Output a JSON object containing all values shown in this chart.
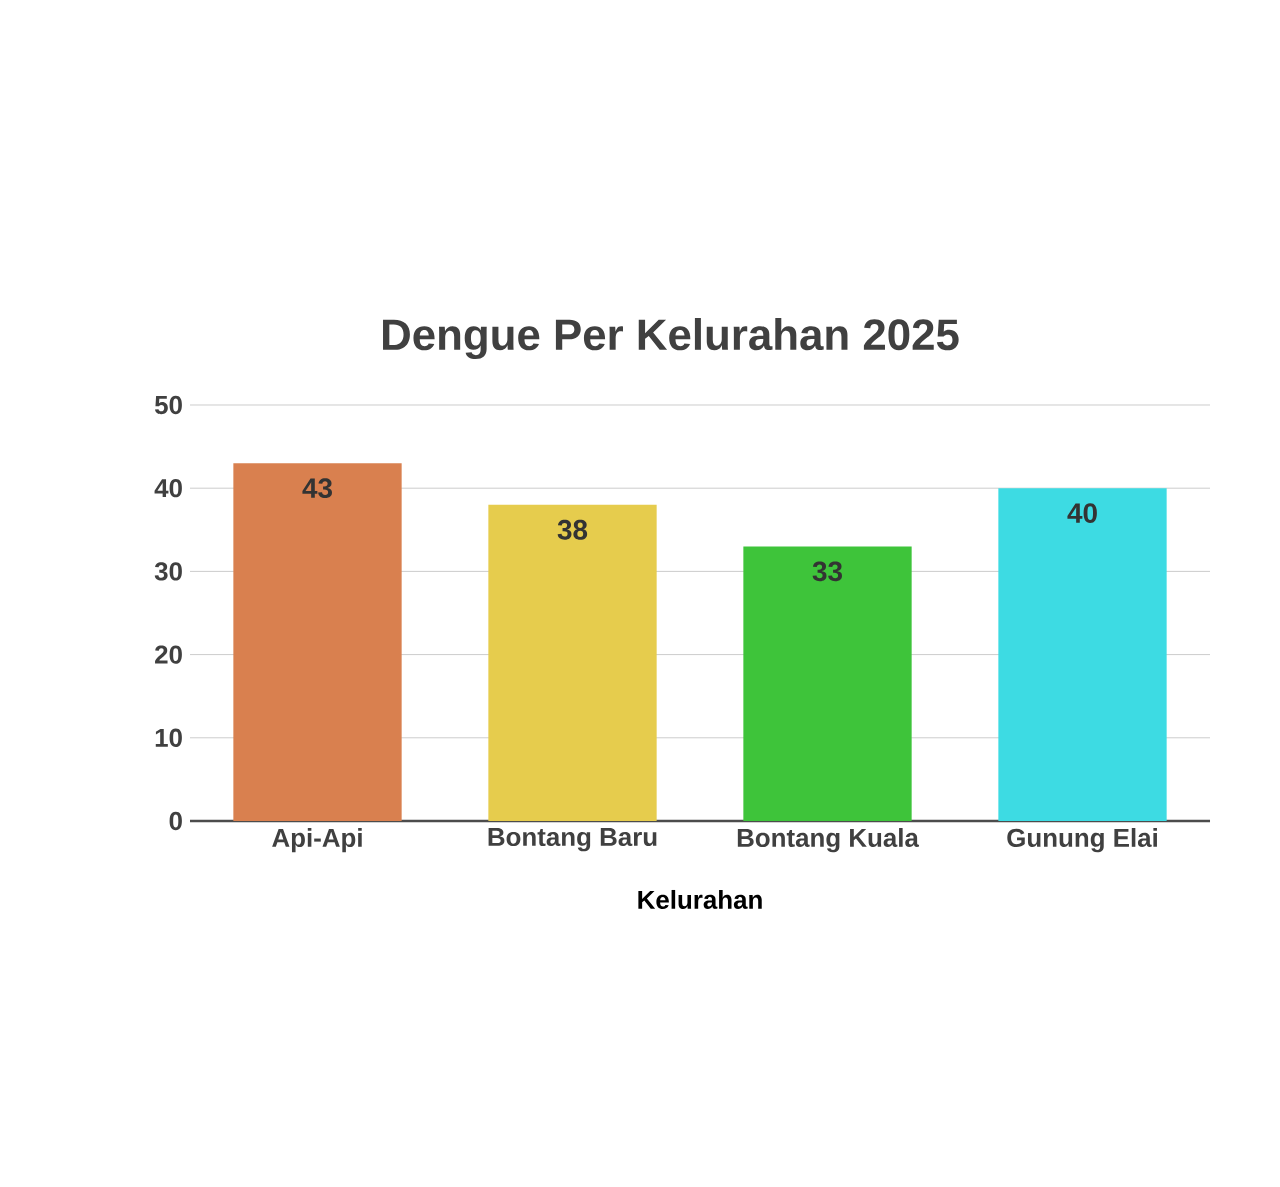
{
  "chart_data": {
    "type": "bar",
    "title": "Dengue Per Kelurahan 2025",
    "xlabel": "Kelurahan",
    "categories": [
      "Api-Api",
      "Bontang Baru",
      "Bontang Kuala",
      "Gunung Elai"
    ],
    "values": [
      43,
      38,
      33,
      40
    ],
    "colors": [
      "#d9804f",
      "#e6cc4d",
      "#3ec43a",
      "#3ddbe3"
    ],
    "ylim": [
      0,
      50
    ],
    "yticks": [
      0,
      10,
      20,
      30,
      40,
      50
    ],
    "grid": "y",
    "data_labels": true
  }
}
